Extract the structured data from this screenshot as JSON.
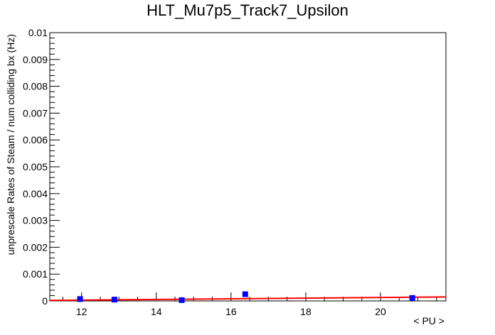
{
  "chart_data": {
    "type": "scatter",
    "title": "HLT_Mu7p5_Track7_Upsilon",
    "xlabel": "< PU >",
    "ylabel": "unprescale Rates of Steam / num colliding bx (Hz)",
    "xlim": [
      11.15,
      21.75
    ],
    "ylim": [
      0,
      0.01
    ],
    "x_ticks": [
      12,
      14,
      16,
      18,
      20
    ],
    "y_ticks": [
      0,
      0.001,
      0.002,
      0.003,
      0.004,
      0.005,
      0.006,
      0.007,
      0.008,
      0.009,
      0.01
    ],
    "x_tick_labels": [
      "12",
      "14",
      "16",
      "18",
      "20"
    ],
    "y_tick_labels": [
      "0",
      "0.001",
      "0.002",
      "0.003",
      "0.004",
      "0.005",
      "0.006",
      "0.007",
      "0.008",
      "0.009",
      "0.01"
    ],
    "grid": false,
    "legend": "none",
    "series": [
      {
        "marker_color": "#0000ff",
        "points": [
          {
            "x": 11.96,
            "y": 7e-05,
            "err": 0.0001
          },
          {
            "x": 12.88,
            "y": 5e-05,
            "err": 3e-05
          },
          {
            "x": 14.68,
            "y": 3e-05,
            "err": 2e-05
          },
          {
            "x": 16.38,
            "y": 0.00025,
            "err": 4e-05
          },
          {
            "x": 20.85,
            "y": 0.00011,
            "err": 8e-05
          }
        ]
      }
    ],
    "fit": {
      "color": "#ff0000",
      "type": "linear",
      "x_range": [
        11.15,
        21.75
      ],
      "y_values": [
        2e-05,
        0.00015
      ]
    }
  }
}
